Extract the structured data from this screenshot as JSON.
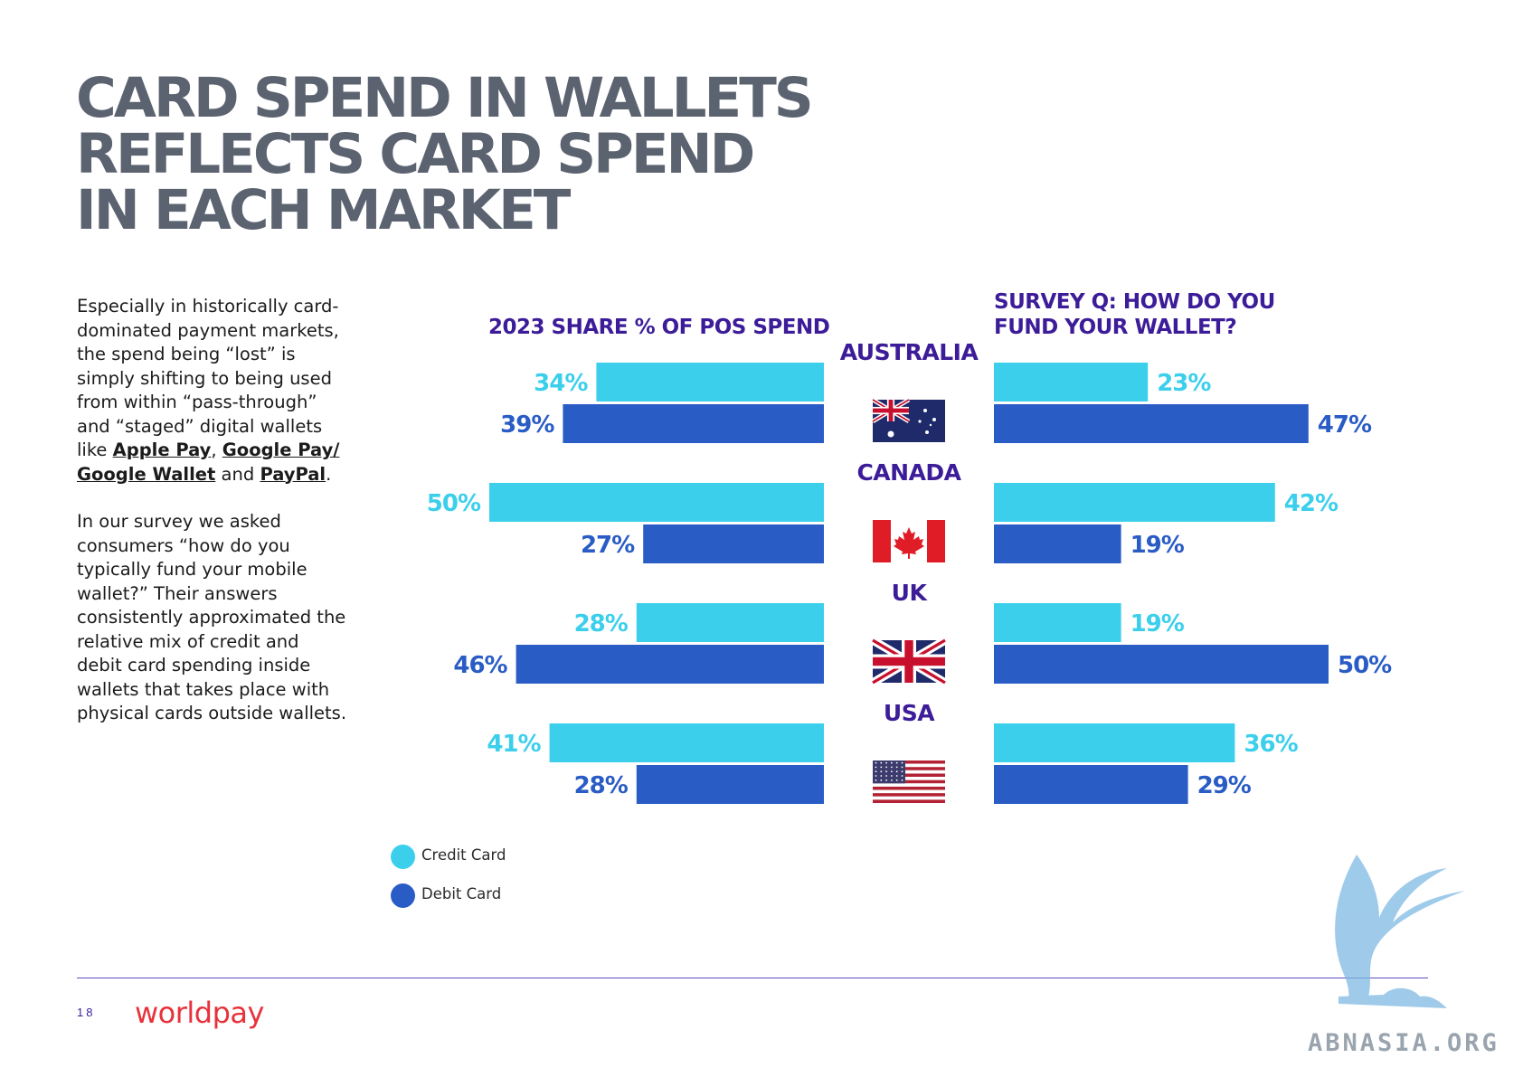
{
  "title": [
    "CARD SPEND IN WALLETS",
    "REFLECTS CARD SPEND",
    "IN EACH MARKET"
  ],
  "intro": {
    "p1_text": "Especially in historically card-dominated payment markets, the spend being “lost” is simply shifting to being used from within “pass-through” and “staged” digital wallets like ",
    "link_apple": "Apple Pay",
    "sep1": ", ",
    "link_google": "Google Pay/ Google Wallet",
    "sep2": " and ",
    "link_paypal": "PayPal",
    "end": ".",
    "p2": "In our survey we asked consumers “how do you typically fund your mobile wallet?” Their answers consistently approximated the relative mix of credit and debit card spending inside wallets that takes place with physical cards outside wallets."
  },
  "headers": {
    "left": "2023 SHARE % OF POS SPEND",
    "right_line1": "SURVEY Q: HOW DO YOU",
    "right_line2": "FUND YOUR WALLET?"
  },
  "legend": {
    "credit": "Credit Card",
    "debit": "Debit Card"
  },
  "colors": {
    "credit": "#3bcfec",
    "debit": "#2a5cc5",
    "header": "#3c1c98",
    "title": "#5c6370",
    "brand": "#e8323b"
  },
  "footer": {
    "page_number": "18",
    "brand": "worldpay"
  },
  "watermark": "ABNASIA.ORG",
  "chart_data": [
    {
      "type": "bar",
      "orientation": "horizontal",
      "title": "2023 SHARE % OF POS SPEND",
      "categories": [
        "AUSTRALIA",
        "CANADA",
        "UK",
        "USA"
      ],
      "series": [
        {
          "name": "Credit Card",
          "values": [
            34,
            50,
            28,
            41
          ]
        },
        {
          "name": "Debit Card",
          "values": [
            39,
            27,
            46,
            28
          ]
        }
      ],
      "unit": "%",
      "xlim": [
        0,
        50
      ]
    },
    {
      "type": "bar",
      "orientation": "horizontal",
      "title": "SURVEY Q: HOW DO YOU FUND YOUR WALLET?",
      "categories": [
        "AUSTRALIA",
        "CANADA",
        "UK",
        "USA"
      ],
      "series": [
        {
          "name": "Credit Card",
          "values": [
            23,
            42,
            19,
            36
          ]
        },
        {
          "name": "Debit Card",
          "values": [
            47,
            19,
            50,
            29
          ]
        }
      ],
      "unit": "%",
      "xlim": [
        0,
        50
      ]
    }
  ],
  "flags": [
    "australia-flag-icon",
    "canada-flag-icon",
    "uk-flag-icon",
    "usa-flag-icon"
  ]
}
